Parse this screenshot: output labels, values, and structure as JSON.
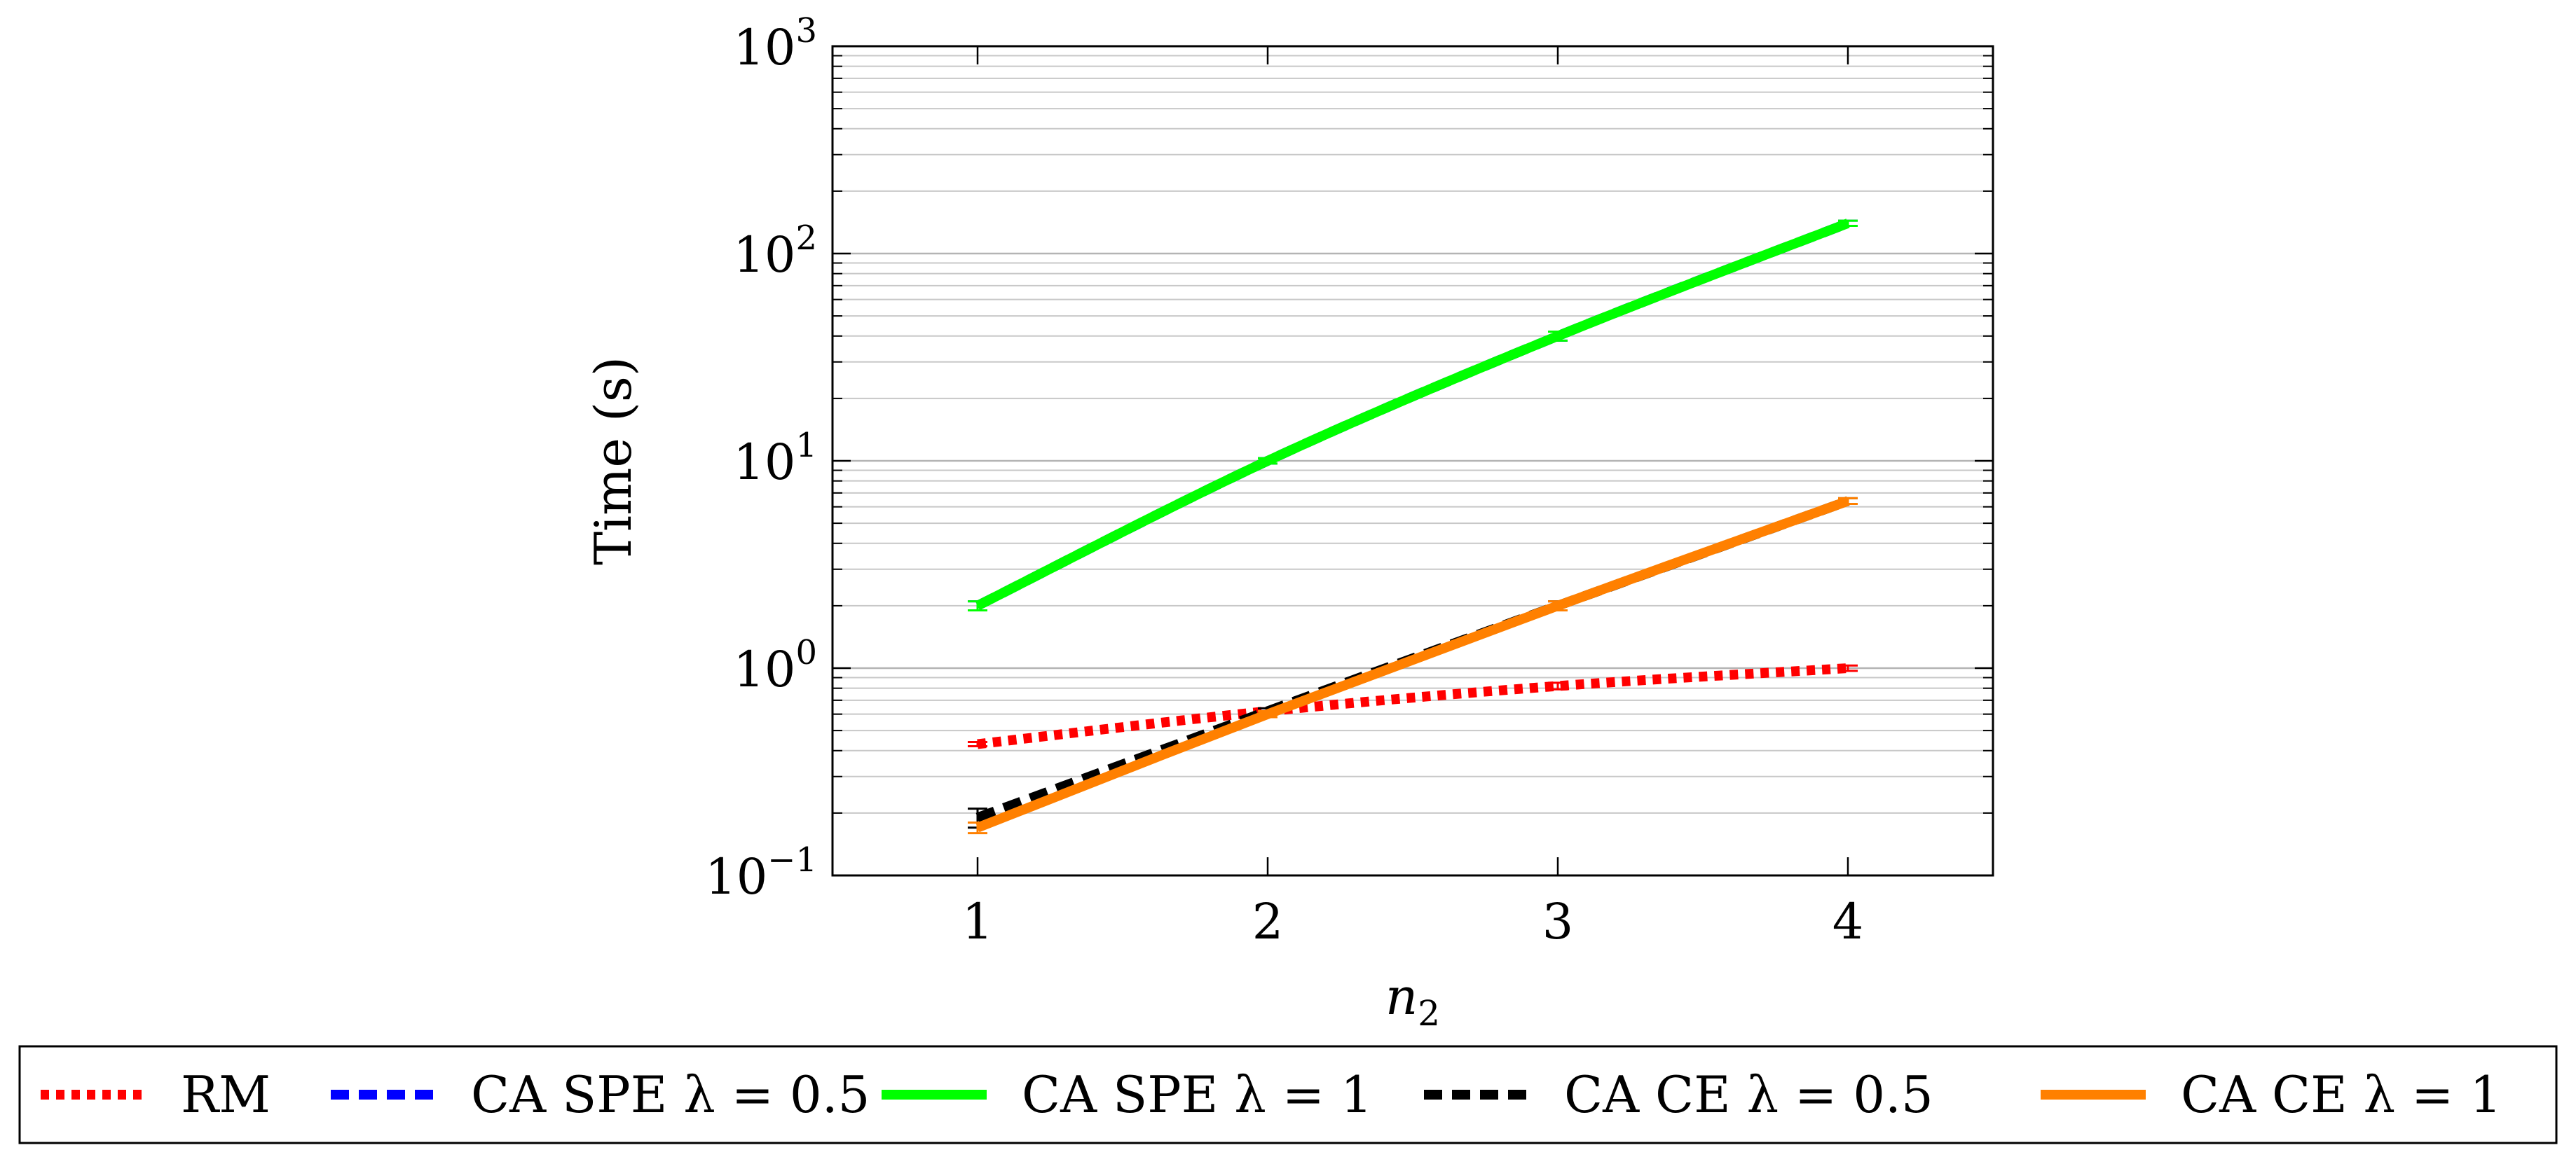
{
  "chart_data": {
    "type": "line",
    "xlabel": "n",
    "xlabel_sub": "2",
    "ylabel": "Time (s)",
    "x": [
      1,
      2,
      3,
      4
    ],
    "xlim": [
      0.5,
      4.5
    ],
    "ylim": [
      0.1,
      1000
    ],
    "yscale": "log",
    "grid": "y-major-and-minor",
    "legend_position": "bottom-outside",
    "x_ticks": [
      "1",
      "2",
      "3",
      "4"
    ],
    "y_ticks": [
      {
        "base": "10",
        "exp": "−1",
        "value": 0.1
      },
      {
        "base": "10",
        "exp": "0",
        "value": 1
      },
      {
        "base": "10",
        "exp": "1",
        "value": 10
      },
      {
        "base": "10",
        "exp": "2",
        "value": 100
      },
      {
        "base": "10",
        "exp": "3",
        "value": 1000
      }
    ],
    "series": [
      {
        "name": "RM",
        "values": [
          0.43,
          0.62,
          0.82,
          1.0
        ],
        "errors": [
          0.01,
          0.02,
          0.03,
          0.03
        ],
        "color": "#ff0000",
        "dash": "dotted"
      },
      {
        "name": "CA SPE λ = 0.5",
        "values": [
          2.0,
          10.0,
          40.0,
          140.0
        ],
        "errors": [
          0.1,
          0.3,
          2.0,
          4.0
        ],
        "color": "#0000ff",
        "dash": "dashed"
      },
      {
        "name": "CA SPE λ = 1",
        "values": [
          2.0,
          10.0,
          40.0,
          140.0
        ],
        "errors": [
          0.1,
          0.3,
          2.0,
          4.0
        ],
        "color": "#00ff00",
        "dash": "solid"
      },
      {
        "name": "CA CE λ = 0.5",
        "values": [
          0.19,
          0.62,
          2.0,
          6.4
        ],
        "errors": [
          0.02,
          0.02,
          0.1,
          0.2
        ],
        "color": "#000000",
        "dash": "dashed"
      },
      {
        "name": "CA CE λ = 1",
        "values": [
          0.17,
          0.6,
          2.0,
          6.4
        ],
        "errors": [
          0.01,
          0.02,
          0.1,
          0.2
        ],
        "color": "#ff8000",
        "dash": "solid"
      }
    ]
  }
}
